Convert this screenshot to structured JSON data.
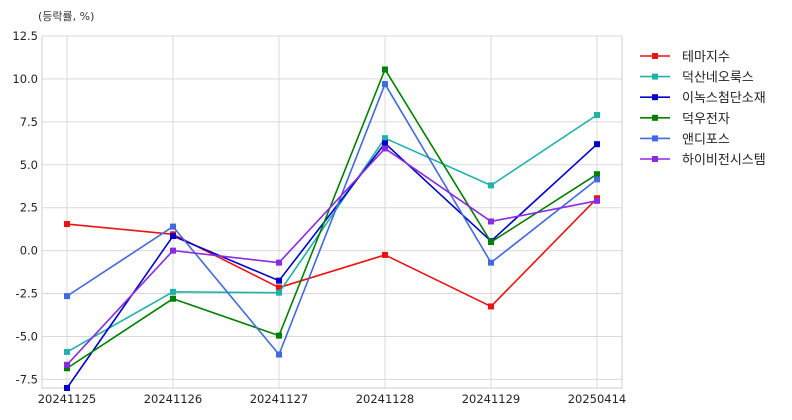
{
  "chart_data": {
    "type": "line",
    "unit_label": "(등락률, %)",
    "categories": [
      "20241125",
      "20241126",
      "20241127",
      "20241128",
      "20241129",
      "20250414"
    ],
    "ylim": [
      -8.0,
      12.5
    ],
    "yticks": [
      -7.5,
      -5.0,
      -2.5,
      0.0,
      2.5,
      5.0,
      7.5,
      10.0,
      12.5
    ],
    "grid": true,
    "legend_position": "outside-right-top",
    "series": [
      {
        "name": "테마지수",
        "color": "#ee1111",
        "values": [
          1.55,
          0.95,
          -2.15,
          -0.25,
          -3.25,
          3.05
        ]
      },
      {
        "name": "덕산네오룩스",
        "color": "#20b2aa",
        "values": [
          -5.9,
          -2.4,
          -2.45,
          6.55,
          3.8,
          7.9
        ]
      },
      {
        "name": "이녹스첨단소재",
        "color": "#0000cd",
        "values": [
          -8.0,
          0.85,
          -1.75,
          6.25,
          0.55,
          6.2
        ]
      },
      {
        "name": "덕우전자",
        "color": "#008000",
        "values": [
          -6.85,
          -2.8,
          -4.95,
          10.55,
          0.5,
          4.45
        ]
      },
      {
        "name": "앤디포스",
        "color": "#4169e1",
        "values": [
          -2.65,
          1.4,
          -6.05,
          9.7,
          -0.7,
          4.15
        ]
      },
      {
        "name": "하이비전시스템",
        "color": "#8a2be2",
        "values": [
          -6.65,
          0.0,
          -0.7,
          5.95,
          1.7,
          2.9
        ]
      }
    ]
  }
}
